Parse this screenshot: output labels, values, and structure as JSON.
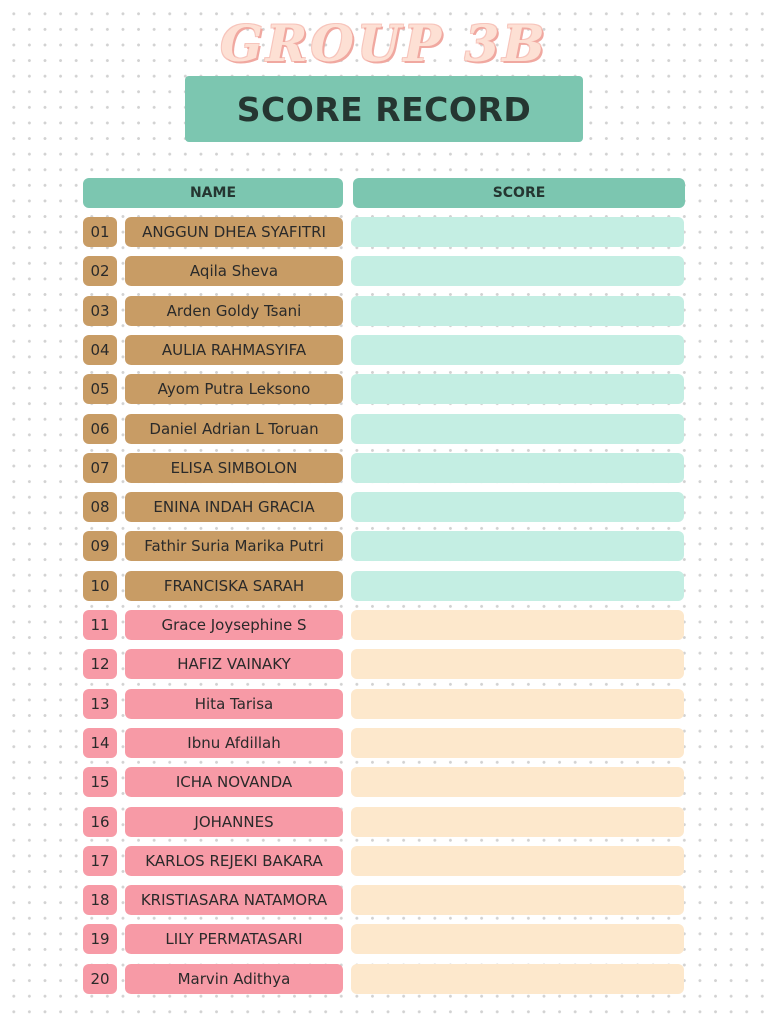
{
  "header": {
    "group_title": "GROUP 3B",
    "record_title": "SCORE RECORD"
  },
  "table": {
    "col_name": "NAME",
    "col_score": "SCORE",
    "rows": [
      {
        "no": "01",
        "name": "ANGGUN DHEA SYAFITRI",
        "score": ""
      },
      {
        "no": "02",
        "name": "Aqila Sheva",
        "score": ""
      },
      {
        "no": "03",
        "name": "Arden Goldy Tsani",
        "score": ""
      },
      {
        "no": "04",
        "name": "AULIA RAHMASYIFA",
        "score": ""
      },
      {
        "no": "05",
        "name": "Ayom Putra Leksono",
        "score": ""
      },
      {
        "no": "06",
        "name": "Daniel Adrian L Toruan",
        "score": ""
      },
      {
        "no": "07",
        "name": "ELISA SIMBOLON",
        "score": ""
      },
      {
        "no": "08",
        "name": "ENINA INDAH GRACIA",
        "score": ""
      },
      {
        "no": "09",
        "name": "Fathir Suria Marika Putri",
        "score": ""
      },
      {
        "no": "10",
        "name": "FRANCISKA SARAH",
        "score": ""
      },
      {
        "no": "11",
        "name": "Grace Joysephine S",
        "score": ""
      },
      {
        "no": "12",
        "name": "HAFIZ VAINAKY",
        "score": ""
      },
      {
        "no": "13",
        "name": "Hita Tarisa",
        "score": ""
      },
      {
        "no": "14",
        "name": "Ibnu Afdillah",
        "score": ""
      },
      {
        "no": "15",
        "name": "ICHA NOVANDA",
        "score": ""
      },
      {
        "no": "16",
        "name": "JOHANNES",
        "score": ""
      },
      {
        "no": "17",
        "name": "KARLOS REJEKI BAKARA",
        "score": ""
      },
      {
        "no": "18",
        "name": "KRISTIASARA NATAMORA",
        "score": ""
      },
      {
        "no": "19",
        "name": "LILY PERMATASARI",
        "score": ""
      },
      {
        "no": "20",
        "name": "Marvin Adithya",
        "score": ""
      }
    ]
  }
}
